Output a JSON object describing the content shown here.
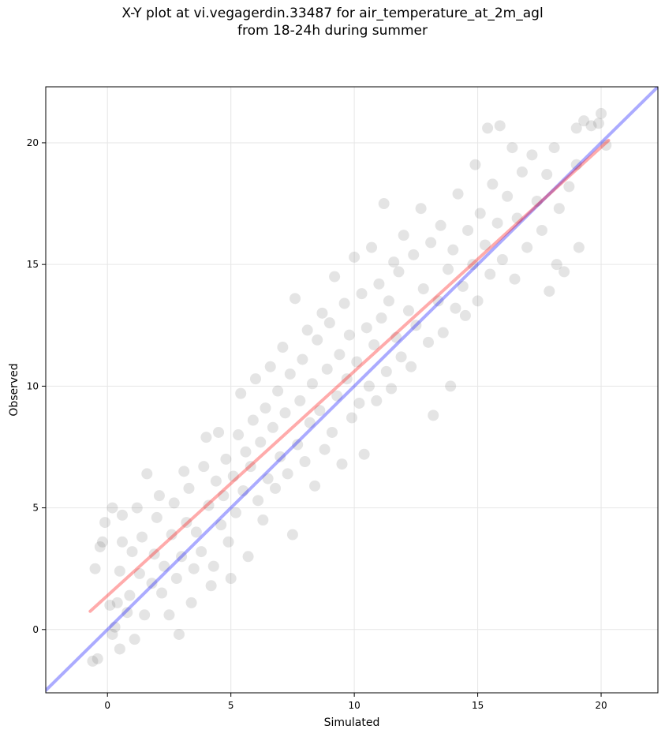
{
  "chart_data": {
    "type": "scatter",
    "title_lines": [
      "X-Y plot at vi.vegagerdin.33487 for air_temperature_at_2m_agl",
      "from 18-24h during summer"
    ],
    "xlabel": "Simulated",
    "ylabel": "Observed",
    "xlim": [
      -2.5,
      22.3
    ],
    "ylim": [
      -2.6,
      22.3
    ],
    "xticks": [
      0,
      5,
      10,
      15,
      20
    ],
    "yticks": [
      0,
      5,
      10,
      15,
      20
    ],
    "xtick_labels": [
      "0",
      "5",
      "10",
      "15",
      "20"
    ],
    "ytick_labels": [
      "0",
      "5",
      "10",
      "15",
      "20"
    ],
    "grid": true,
    "colors": {
      "points": "#555555",
      "identity": "#0000ff",
      "fit": "#ff0000",
      "grid": "#e6e6e6"
    },
    "point_alpha": 0.16,
    "series": [
      {
        "kind": "points",
        "points": [
          [
            -0.6,
            -1.3
          ],
          [
            -0.4,
            -1.2
          ],
          [
            -0.5,
            2.5
          ],
          [
            -0.3,
            3.4
          ],
          [
            -0.2,
            3.6
          ],
          [
            -0.1,
            4.4
          ],
          [
            0.2,
            -0.2
          ],
          [
            0.3,
            0.1
          ],
          [
            0.5,
            -0.8
          ],
          [
            0.1,
            1.0
          ],
          [
            0.4,
            1.1
          ],
          [
            0.5,
            2.4
          ],
          [
            0.6,
            3.6
          ],
          [
            0.2,
            5.0
          ],
          [
            0.6,
            4.7
          ],
          [
            0.8,
            0.7
          ],
          [
            0.9,
            1.4
          ],
          [
            1.1,
            -0.4
          ],
          [
            1.3,
            2.3
          ],
          [
            1.0,
            3.2
          ],
          [
            1.4,
            3.8
          ],
          [
            1.2,
            5.0
          ],
          [
            1.6,
            6.4
          ],
          [
            1.5,
            0.6
          ],
          [
            1.8,
            1.9
          ],
          [
            1.9,
            3.1
          ],
          [
            2.0,
            4.6
          ],
          [
            2.2,
            1.5
          ],
          [
            2.3,
            2.6
          ],
          [
            2.1,
            5.5
          ],
          [
            2.5,
            0.6
          ],
          [
            2.6,
            3.9
          ],
          [
            2.7,
            5.2
          ],
          [
            2.9,
            -0.2
          ],
          [
            2.8,
            2.1
          ],
          [
            3.0,
            3.0
          ],
          [
            3.2,
            4.4
          ],
          [
            3.1,
            6.5
          ],
          [
            3.4,
            1.1
          ],
          [
            3.5,
            2.5
          ],
          [
            3.3,
            5.8
          ],
          [
            3.6,
            4.0
          ],
          [
            3.8,
            3.2
          ],
          [
            3.9,
            6.7
          ],
          [
            4.0,
            7.9
          ],
          [
            4.2,
            1.8
          ],
          [
            4.3,
            2.6
          ],
          [
            4.1,
            5.1
          ],
          [
            4.4,
            6.1
          ],
          [
            4.5,
            8.1
          ],
          [
            4.6,
            4.3
          ],
          [
            4.7,
            5.5
          ],
          [
            4.8,
            7.0
          ],
          [
            4.9,
            3.6
          ],
          [
            5.0,
            2.1
          ],
          [
            5.1,
            6.3
          ],
          [
            5.2,
            4.8
          ],
          [
            5.3,
            8.0
          ],
          [
            5.4,
            9.7
          ],
          [
            5.5,
            5.7
          ],
          [
            5.6,
            7.3
          ],
          [
            5.7,
            3.0
          ],
          [
            5.8,
            6.7
          ],
          [
            5.9,
            8.6
          ],
          [
            6.0,
            10.3
          ],
          [
            6.1,
            5.3
          ],
          [
            6.2,
            7.7
          ],
          [
            6.3,
            4.5
          ],
          [
            6.4,
            9.1
          ],
          [
            6.5,
            6.2
          ],
          [
            6.6,
            10.8
          ],
          [
            6.7,
            8.3
          ],
          [
            6.8,
            5.8
          ],
          [
            6.9,
            9.8
          ],
          [
            7.0,
            7.1
          ],
          [
            7.1,
            11.6
          ],
          [
            7.2,
            8.9
          ],
          [
            7.3,
            6.4
          ],
          [
            7.4,
            10.5
          ],
          [
            7.5,
            3.9
          ],
          [
            7.6,
            13.6
          ],
          [
            7.7,
            7.6
          ],
          [
            7.8,
            9.4
          ],
          [
            7.9,
            11.1
          ],
          [
            8.0,
            6.9
          ],
          [
            8.1,
            12.3
          ],
          [
            8.2,
            8.5
          ],
          [
            8.3,
            10.1
          ],
          [
            8.4,
            5.9
          ],
          [
            8.5,
            11.9
          ],
          [
            8.6,
            9.0
          ],
          [
            8.7,
            13.0
          ],
          [
            8.8,
            7.4
          ],
          [
            8.9,
            10.7
          ],
          [
            9.0,
            12.6
          ],
          [
            9.1,
            8.1
          ],
          [
            9.2,
            14.5
          ],
          [
            9.3,
            9.6
          ],
          [
            9.4,
            11.3
          ],
          [
            9.5,
            6.8
          ],
          [
            9.6,
            13.4
          ],
          [
            9.7,
            10.3
          ],
          [
            9.8,
            12.1
          ],
          [
            9.9,
            8.7
          ],
          [
            10.0,
            15.3
          ],
          [
            10.1,
            11.0
          ],
          [
            10.2,
            9.3
          ],
          [
            10.3,
            13.8
          ],
          [
            10.4,
            7.2
          ],
          [
            10.5,
            12.4
          ],
          [
            10.6,
            10.0
          ],
          [
            10.7,
            15.7
          ],
          [
            10.8,
            11.7
          ],
          [
            10.9,
            9.4
          ],
          [
            11.0,
            14.2
          ],
          [
            11.1,
            12.8
          ],
          [
            11.2,
            17.5
          ],
          [
            11.3,
            10.6
          ],
          [
            11.4,
            13.5
          ],
          [
            11.5,
            9.9
          ],
          [
            11.6,
            15.1
          ],
          [
            11.7,
            12.0
          ],
          [
            11.8,
            14.7
          ],
          [
            11.9,
            11.2
          ],
          [
            12.0,
            16.2
          ],
          [
            12.2,
            13.1
          ],
          [
            12.3,
            10.8
          ],
          [
            12.4,
            15.4
          ],
          [
            12.5,
            12.5
          ],
          [
            12.7,
            17.3
          ],
          [
            12.8,
            14.0
          ],
          [
            13.0,
            11.8
          ],
          [
            13.1,
            15.9
          ],
          [
            13.2,
            8.8
          ],
          [
            13.4,
            13.5
          ],
          [
            13.5,
            16.6
          ],
          [
            13.6,
            12.2
          ],
          [
            13.8,
            14.8
          ],
          [
            13.9,
            10.0
          ],
          [
            14.0,
            15.6
          ],
          [
            14.1,
            13.2
          ],
          [
            14.2,
            17.9
          ],
          [
            14.4,
            14.1
          ],
          [
            14.5,
            12.9
          ],
          [
            14.6,
            16.4
          ],
          [
            14.8,
            15.0
          ],
          [
            14.9,
            19.1
          ],
          [
            15.0,
            13.5
          ],
          [
            15.1,
            17.1
          ],
          [
            15.3,
            15.8
          ],
          [
            15.4,
            20.6
          ],
          [
            15.5,
            14.6
          ],
          [
            15.6,
            18.3
          ],
          [
            15.8,
            16.7
          ],
          [
            15.9,
            20.7
          ],
          [
            16.0,
            15.2
          ],
          [
            16.2,
            17.8
          ],
          [
            16.4,
            19.8
          ],
          [
            16.5,
            14.4
          ],
          [
            16.6,
            16.9
          ],
          [
            16.8,
            18.8
          ],
          [
            17.0,
            15.7
          ],
          [
            17.2,
            19.5
          ],
          [
            17.4,
            17.6
          ],
          [
            17.6,
            16.4
          ],
          [
            17.8,
            18.7
          ],
          [
            17.9,
            13.9
          ],
          [
            18.1,
            19.8
          ],
          [
            18.3,
            17.3
          ],
          [
            18.5,
            14.7
          ],
          [
            18.7,
            18.2
          ],
          [
            19.0,
            20.6
          ],
          [
            19.1,
            15.7
          ],
          [
            19.3,
            20.9
          ],
          [
            19.6,
            20.7
          ],
          [
            19.9,
            20.8
          ],
          [
            20.0,
            21.2
          ],
          [
            20.2,
            19.9
          ],
          [
            19.0,
            19.1
          ],
          [
            18.2,
            15.0
          ]
        ]
      },
      {
        "kind": "line",
        "name": "identity",
        "x": [
          -2.5,
          22.3
        ],
        "y": [
          -2.5,
          22.3
        ]
      },
      {
        "kind": "line",
        "name": "fit",
        "x": [
          -0.7,
          20.3
        ],
        "y": [
          0.75,
          20.1
        ]
      }
    ]
  }
}
